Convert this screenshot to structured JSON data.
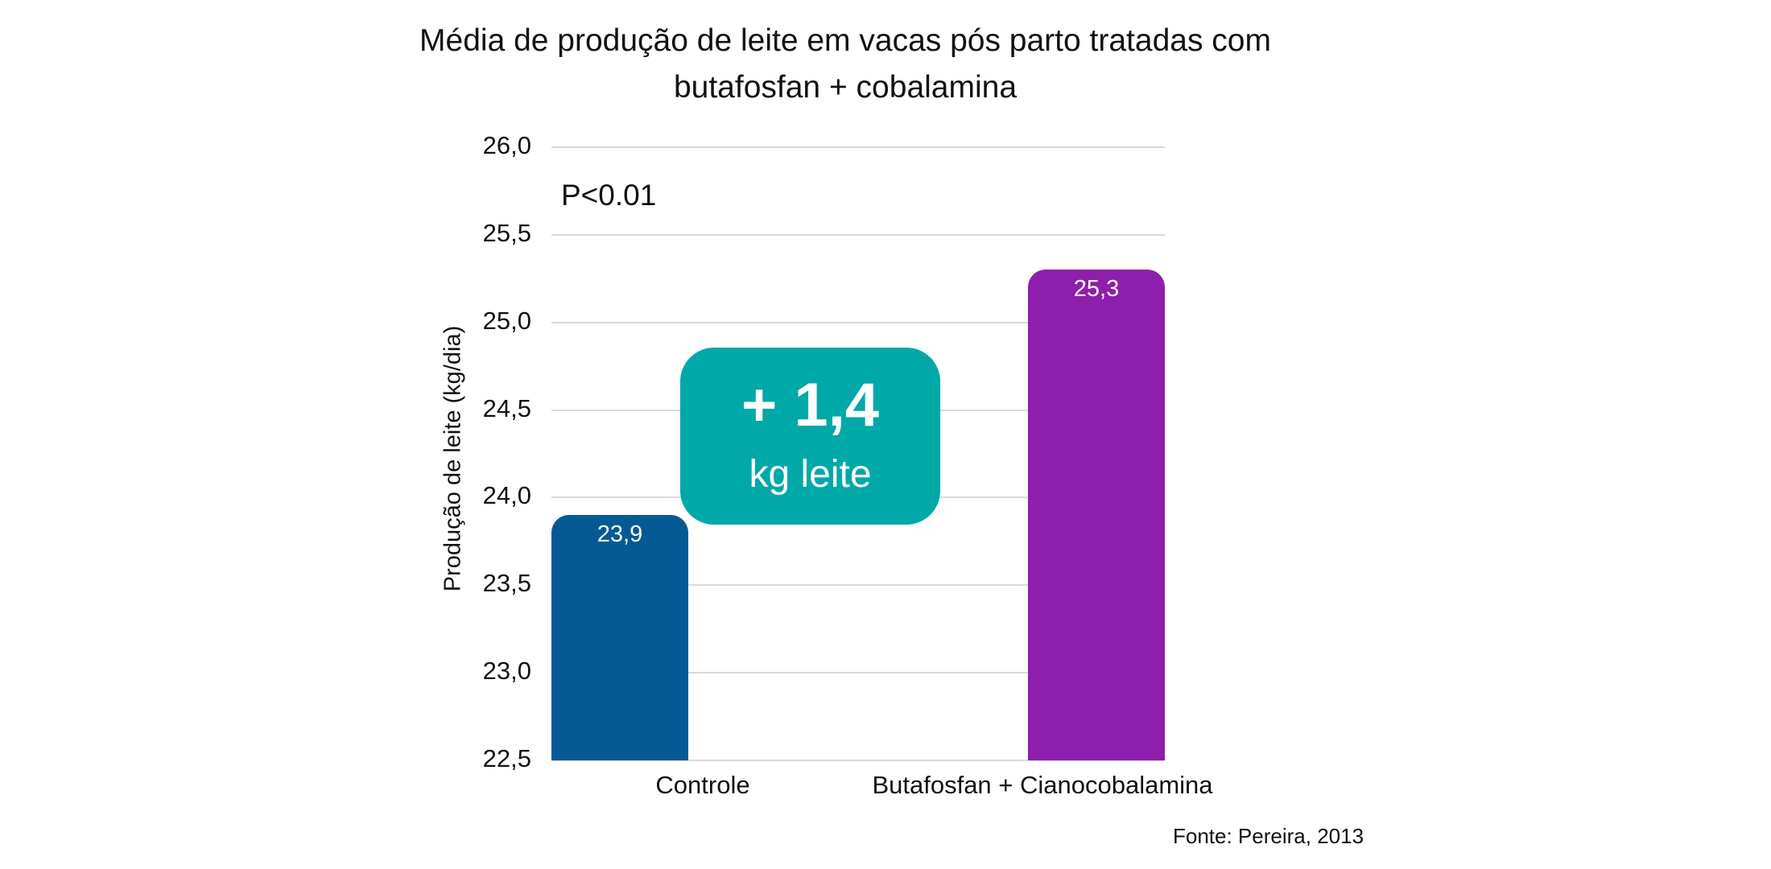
{
  "chart_data": {
    "type": "bar",
    "title": "Média de produção de leite em vacas pós parto tratadas com butafosfan + cobalamina",
    "title_lines": [
      "Média de produção de leite em vacas pós parto tratadas com",
      "butafosfan + cobalamina"
    ],
    "xlabel": "",
    "ylabel": "Produção de leite (kg/dia)",
    "categories": [
      "Controle",
      "Butafosfan + Cianocobalamina"
    ],
    "values": [
      23.9,
      25.3
    ],
    "value_labels": [
      "23,9",
      "25,3"
    ],
    "colors": [
      "#055a96",
      "#8e1eac"
    ],
    "ylim": [
      22.5,
      26.0
    ],
    "yticks": [
      "22,5",
      "23,0",
      "23,5",
      "24,0",
      "24,5",
      "25,0",
      "25,5",
      "26,0"
    ],
    "grid": true,
    "legend": null,
    "annotations": {
      "p_value": "P<0.01",
      "difference_badge": {
        "value": "+ 1,4",
        "unit": "kg leite",
        "color": "#00a8a8"
      }
    },
    "source": "Fonte: Pereira, 2013"
  }
}
